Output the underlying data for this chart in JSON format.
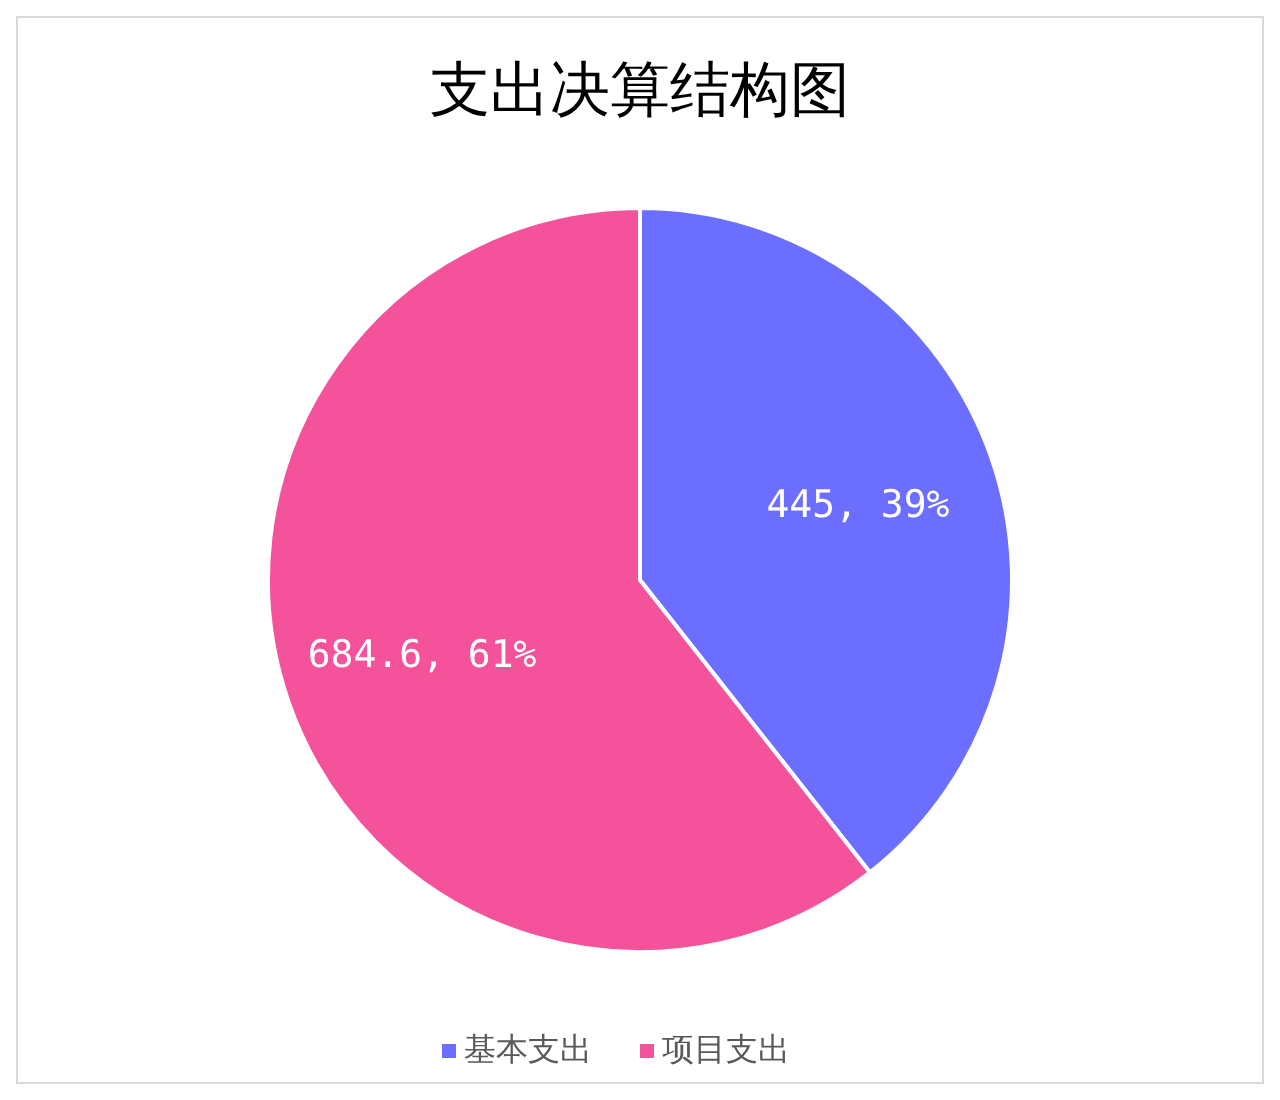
{
  "chart_data": {
    "type": "pie",
    "title": "支出决算结构图",
    "categories": [
      "基本支出",
      "项目支出"
    ],
    "values": [
      445,
      684.6
    ],
    "colors": [
      "#6b6eff",
      "#f4529a"
    ],
    "value_labels": [
      "445, 39%",
      "684.6, 61%"
    ],
    "legend": "bottom"
  }
}
